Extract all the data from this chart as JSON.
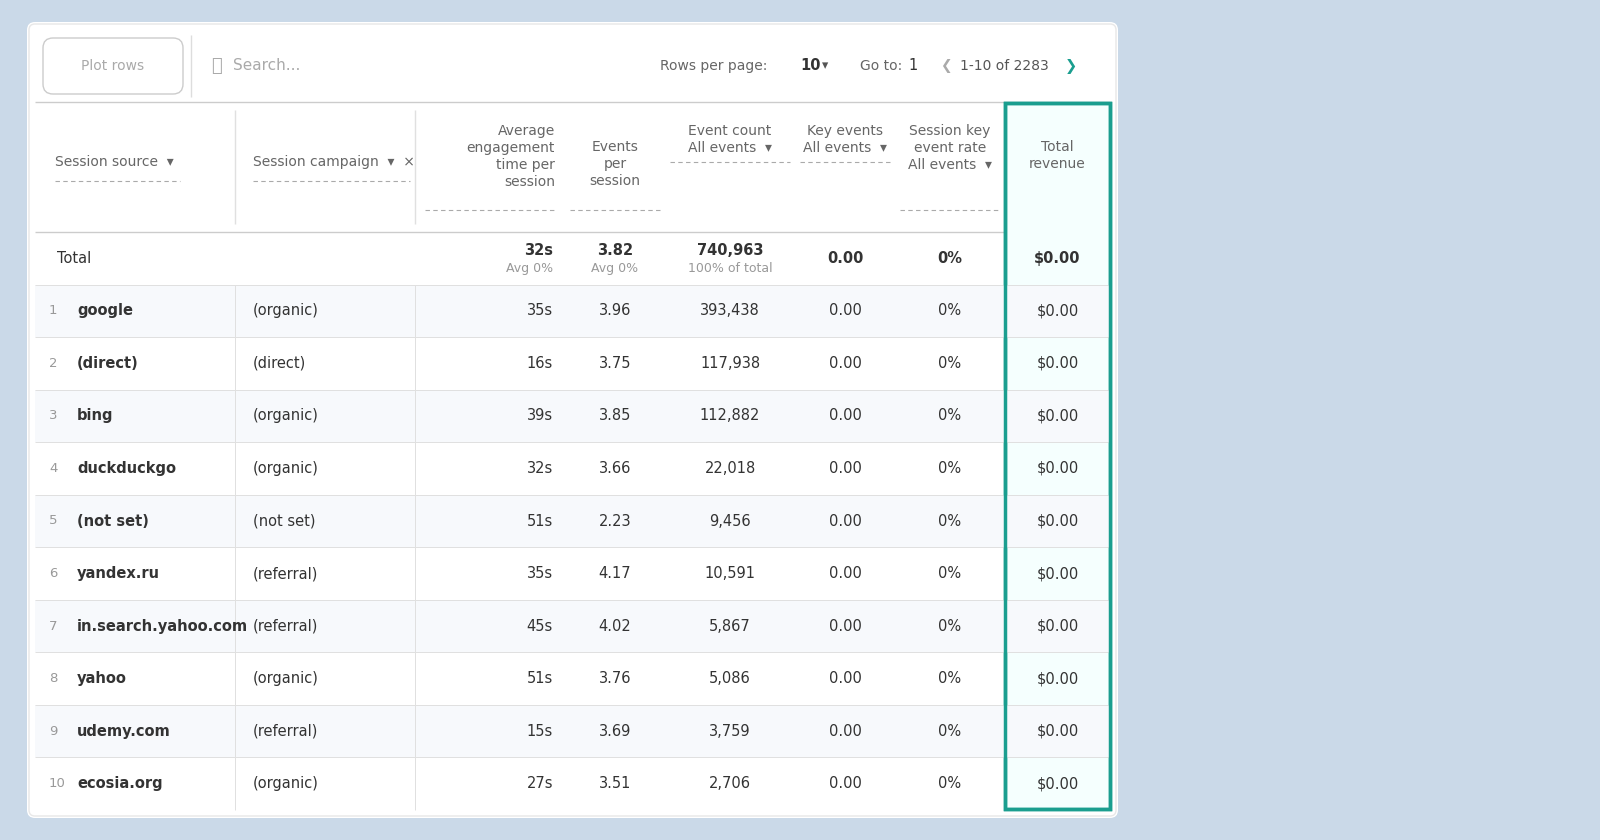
{
  "bg_color": "#cad9e8",
  "card_color": "#ffffff",
  "highlight_border": "#1a9e8f",
  "highlight_fill": "#f5fffe",
  "title_text_color": "#666666",
  "data_text_color": "#333333",
  "subtext_color": "#999999",
  "divider_color": "#e0e0e0",
  "bold_divider_color": "#cccccc",
  "rows_per_page_label": "Rows per page:",
  "rows_per_page_value": "10",
  "goto_label": "Go to:",
  "goto_value": "1",
  "pagination": "1-10 of 2283",
  "search_placeholder": "Search...",
  "plot_rows_label": "Plot rows",
  "total_row": {
    "label": "Total",
    "avg_engagement": "32s",
    "avg_engagement_sub": "Avg 0%",
    "events_per_session": "3.82",
    "events_per_session_sub": "Avg 0%",
    "event_count": "740,963",
    "event_count_sub": "100% of total",
    "key_events": "0.00",
    "session_key_rate": "0%",
    "total_revenue": "$0.00"
  },
  "rows": [
    {
      "num": "1",
      "source": "google",
      "campaign": "(organic)",
      "avg_eng": "35s",
      "eps": "3.96",
      "event_count": "393,438",
      "key_events": "0.00",
      "skr": "0%",
      "revenue": "$0.00"
    },
    {
      "num": "2",
      "source": "(direct)",
      "campaign": "(direct)",
      "avg_eng": "16s",
      "eps": "3.75",
      "event_count": "117,938",
      "key_events": "0.00",
      "skr": "0%",
      "revenue": "$0.00"
    },
    {
      "num": "3",
      "source": "bing",
      "campaign": "(organic)",
      "avg_eng": "39s",
      "eps": "3.85",
      "event_count": "112,882",
      "key_events": "0.00",
      "skr": "0%",
      "revenue": "$0.00"
    },
    {
      "num": "4",
      "source": "duckduckgo",
      "campaign": "(organic)",
      "avg_eng": "32s",
      "eps": "3.66",
      "event_count": "22,018",
      "key_events": "0.00",
      "skr": "0%",
      "revenue": "$0.00"
    },
    {
      "num": "5",
      "source": "(not set)",
      "campaign": "(not set)",
      "avg_eng": "51s",
      "eps": "2.23",
      "event_count": "9,456",
      "key_events": "0.00",
      "skr": "0%",
      "revenue": "$0.00"
    },
    {
      "num": "6",
      "source": "yandex.ru",
      "campaign": "(referral)",
      "avg_eng": "35s",
      "eps": "4.17",
      "event_count": "10,591",
      "key_events": "0.00",
      "skr": "0%",
      "revenue": "$0.00"
    },
    {
      "num": "7",
      "source": "in.search.yahoo.com",
      "campaign": "(referral)",
      "avg_eng": "45s",
      "eps": "4.02",
      "event_count": "5,867",
      "key_events": "0.00",
      "skr": "0%",
      "revenue": "$0.00"
    },
    {
      "num": "8",
      "source": "yahoo",
      "campaign": "(organic)",
      "avg_eng": "51s",
      "eps": "3.76",
      "event_count": "5,086",
      "key_events": "0.00",
      "skr": "0%",
      "revenue": "$0.00"
    },
    {
      "num": "9",
      "source": "udemy.com",
      "campaign": "(referral)",
      "avg_eng": "15s",
      "eps": "3.69",
      "event_count": "3,759",
      "key_events": "0.00",
      "skr": "0%",
      "revenue": "$0.00"
    },
    {
      "num": "10",
      "source": "ecosia.org",
      "campaign": "(organic)",
      "avg_eng": "27s",
      "eps": "3.51",
      "event_count": "2,706",
      "key_events": "0.00",
      "skr": "0%",
      "revenue": "$0.00"
    }
  ]
}
